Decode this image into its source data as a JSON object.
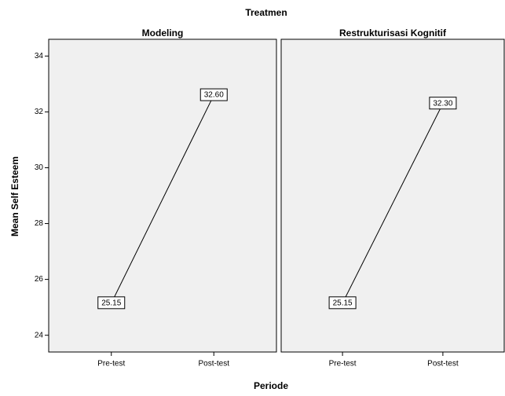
{
  "chart_data": {
    "type": "line",
    "title": "Treatmen",
    "xlabel": "Periode",
    "ylabel": "Mean Self Esteem",
    "ylim": [
      23.4,
      34.6
    ],
    "yticks": [
      24,
      26,
      28,
      30,
      32,
      34
    ],
    "color": "#000000",
    "panel_color": "#f0f0f0",
    "panels": [
      {
        "title": "Modeling",
        "categories": [
          "Pre-test",
          "Post-test"
        ],
        "values": [
          25.15,
          32.6
        ],
        "value_labels": [
          "25.15",
          "32.60"
        ]
      },
      {
        "title": "Restrukturisasi Kognitif",
        "categories": [
          "Pre-test",
          "Post-test"
        ],
        "values": [
          25.15,
          32.3
        ],
        "value_labels": [
          "25.15",
          "32.30"
        ]
      }
    ]
  }
}
